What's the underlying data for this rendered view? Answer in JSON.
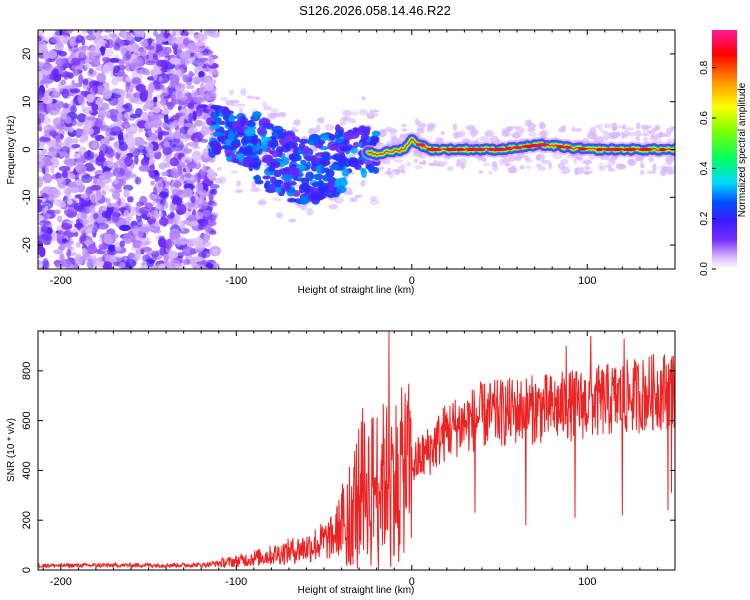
{
  "title": "S126.2026.058.14.46.R22",
  "colors": {
    "snr_line": "#ee2222",
    "axis": "#000000"
  },
  "chart_data": [
    {
      "type": "heatmap",
      "xlabel": "Height of straight line (km)",
      "ylabel": "Frequency (Hz)",
      "xlim": [
        -213,
        150
      ],
      "ylim": [
        -25,
        25
      ],
      "xticks": [
        -200,
        -100,
        0,
        100
      ],
      "xtick_labels": [
        "-200",
        "-100",
        "0",
        "100"
      ],
      "yticks": [
        -20,
        -10,
        0,
        10,
        20
      ],
      "ytick_labels": [
        "-20",
        "-10",
        "0",
        "10",
        "20"
      ],
      "colorbar": {
        "label": "Normalized spectral amplitude",
        "range": [
          0,
          0.95
        ],
        "ticks": [
          0.0,
          0.2,
          0.4,
          0.6,
          0.8
        ],
        "tick_labels": [
          "0.0",
          "0.2",
          "0.4",
          "0.6",
          "0.8"
        ]
      },
      "ridge": {
        "description_points": [
          {
            "x": -110,
            "y": 4
          },
          {
            "x": -90,
            "y": 1
          },
          {
            "x": -75,
            "y": -3
          },
          {
            "x": -60,
            "y": -5
          },
          {
            "x": -45,
            "y": -3
          },
          {
            "x": -30,
            "y": 0
          },
          {
            "x": -20,
            "y": -1
          },
          {
            "x": -5,
            "y": 0
          },
          {
            "x": 0,
            "y": 2
          },
          {
            "x": 10,
            "y": 0
          },
          {
            "x": 50,
            "y": 0
          },
          {
            "x": 75,
            "y": 1
          },
          {
            "x": 100,
            "y": 0
          },
          {
            "x": 150,
            "y": 0
          }
        ]
      }
    },
    {
      "type": "line",
      "xlabel": "Height of straight line (km)",
      "ylabel": "SNR (10 * v/v)",
      "xlim": [
        -213,
        150
      ],
      "ylim": [
        0,
        960
      ],
      "xticks": [
        -200,
        -100,
        0,
        100
      ],
      "xtick_labels": [
        "-200",
        "-100",
        "0",
        "100"
      ],
      "yticks": [
        0,
        200,
        400,
        600,
        800
      ],
      "ytick_labels": [
        "0",
        "200",
        "400",
        "600",
        "800"
      ],
      "series": [
        {
          "name": "SNR",
          "envelope": [
            {
              "x": -213,
              "y": 18
            },
            {
              "x": -120,
              "y": 20
            },
            {
              "x": -100,
              "y": 35
            },
            {
              "x": -80,
              "y": 60
            },
            {
              "x": -60,
              "y": 90
            },
            {
              "x": -45,
              "y": 130
            },
            {
              "x": -35,
              "y": 250
            },
            {
              "x": -30,
              "y": 320
            },
            {
              "x": -20,
              "y": 360
            },
            {
              "x": -10,
              "y": 380
            },
            {
              "x": 0,
              "y": 420
            },
            {
              "x": 10,
              "y": 480
            },
            {
              "x": 20,
              "y": 560
            },
            {
              "x": 40,
              "y": 620
            },
            {
              "x": 60,
              "y": 640
            },
            {
              "x": 80,
              "y": 650
            },
            {
              "x": 100,
              "y": 670
            },
            {
              "x": 120,
              "y": 690
            },
            {
              "x": 150,
              "y": 730
            }
          ],
          "spikes_up": [
            {
              "x": -13,
              "y": 960
            },
            {
              "x": -28,
              "y": 650
            },
            {
              "x": 102,
              "y": 940
            },
            {
              "x": 121,
              "y": 930
            },
            {
              "x": 88,
              "y": 900
            },
            {
              "x": 149,
              "y": 860
            }
          ],
          "dips": [
            {
              "x": 36,
              "y": 230
            },
            {
              "x": 65,
              "y": 180
            },
            {
              "x": 93,
              "y": 210
            },
            {
              "x": 120,
              "y": 220
            },
            {
              "x": 146,
              "y": 240
            },
            {
              "x": 148,
              "y": 310
            }
          ]
        }
      ]
    }
  ]
}
